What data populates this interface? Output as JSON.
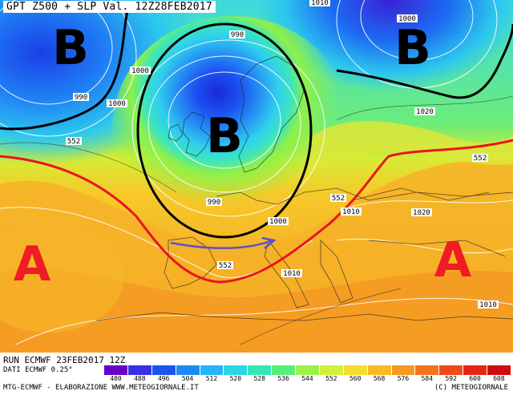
{
  "header": {
    "title": "GPT Z500 + SLP Val. 12Z28FEB2017"
  },
  "map": {
    "pressure_systems": [
      {
        "type": "low",
        "letter": "B",
        "name": "low-northwest-atlantic"
      },
      {
        "type": "low",
        "letter": "B",
        "name": "low-scandinavia"
      },
      {
        "type": "low",
        "letter": "B",
        "name": "low-north-russia"
      },
      {
        "type": "high",
        "letter": "A",
        "name": "high-azores"
      },
      {
        "type": "high",
        "letter": "A",
        "name": "high-eastern-europe"
      }
    ],
    "contour_labels": [
      {
        "text": "990",
        "name": "isobar-990-atlantic"
      },
      {
        "text": "1000",
        "name": "isobar-1000-atlantic"
      },
      {
        "text": "1000",
        "name": "isobar-1000-nw"
      },
      {
        "text": "990",
        "name": "isobar-990-north"
      },
      {
        "text": "990",
        "name": "isobar-990-south"
      },
      {
        "text": "552",
        "name": "isoheight-552-west"
      },
      {
        "text": "552",
        "name": "isoheight-552-central"
      },
      {
        "text": "552",
        "name": "isoheight-552-alps"
      },
      {
        "text": "552",
        "name": "isoheight-552-east"
      },
      {
        "text": "1000",
        "name": "isobar-1000-alps"
      },
      {
        "text": "1010",
        "name": "isobar-1010-germany"
      },
      {
        "text": "1010",
        "name": "isobar-1010-italy"
      },
      {
        "text": "1010",
        "name": "isobar-1010-east"
      },
      {
        "text": "1020",
        "name": "isobar-1020-east"
      },
      {
        "text": "1020",
        "name": "isobar-1020-north"
      },
      {
        "text": "1000",
        "name": "isobar-1000-russia"
      },
      {
        "text": "1010",
        "name": "isobar-1010-top"
      }
    ],
    "colors": {
      "low_outline": "#000000",
      "jet_line": "#e8141e",
      "flow_arrow": "#5a50c8",
      "high_letter": "#ee1c24"
    }
  },
  "footer": {
    "run": "RUN ECMWF 23FEB2017 12Z",
    "source": "DATI ECMWF 0.25°",
    "credit_left": "MTG-ECMWF - ELABORAZIONE WWW.METEOGIORNALE.IT",
    "credit_right": "(C) METEOGIORNALE"
  },
  "legend": {
    "values": [
      "480",
      "488",
      "496",
      "504",
      "512",
      "520",
      "528",
      "536",
      "544",
      "552",
      "560",
      "568",
      "576",
      "584",
      "592",
      "600",
      "608"
    ],
    "colors": [
      "#6a00c8",
      "#3a2ee8",
      "#1b55f0",
      "#1c8af5",
      "#21b6f5",
      "#2ad6e6",
      "#35e6b6",
      "#56ee7a",
      "#9bf24a",
      "#d4ee3a",
      "#f5dd2c",
      "#f8bb26",
      "#f79822",
      "#f4731e",
      "#ee4a1a",
      "#e52616",
      "#d20a10"
    ]
  }
}
